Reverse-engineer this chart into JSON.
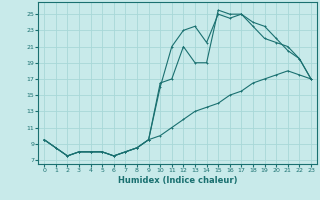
{
  "xlabel": "Humidex (Indice chaleur)",
  "bg_color": "#c8eaea",
  "grid_color": "#a8d8d8",
  "line_color": "#1a7070",
  "xlim": [
    -0.5,
    23.5
  ],
  "ylim": [
    6.5,
    26.5
  ],
  "xticks": [
    0,
    1,
    2,
    3,
    4,
    5,
    6,
    7,
    8,
    9,
    10,
    11,
    12,
    13,
    14,
    15,
    16,
    17,
    18,
    19,
    20,
    21,
    22,
    23
  ],
  "yticks": [
    7,
    9,
    11,
    13,
    15,
    17,
    19,
    21,
    23,
    25
  ],
  "curve1_x": [
    0,
    1,
    2,
    3,
    4,
    5,
    6,
    7,
    8,
    9,
    10,
    11,
    12,
    13,
    14,
    15,
    16,
    17,
    18,
    19,
    20,
    21,
    22,
    23
  ],
  "curve1_y": [
    9.5,
    8.5,
    7.5,
    8.0,
    8.0,
    8.0,
    7.5,
    8.0,
    8.5,
    9.5,
    10.0,
    11.0,
    12.0,
    13.0,
    13.5,
    14.0,
    15.0,
    15.5,
    16.5,
    17.0,
    17.5,
    18.0,
    17.5,
    17.0
  ],
  "curve2_x": [
    0,
    1,
    2,
    3,
    4,
    5,
    6,
    7,
    8,
    9,
    10,
    11,
    12,
    13,
    14,
    15,
    16,
    17,
    18,
    19,
    20,
    21,
    22,
    23
  ],
  "curve2_y": [
    9.5,
    8.5,
    7.5,
    8.0,
    8.0,
    8.0,
    7.5,
    8.0,
    8.5,
    9.5,
    16.5,
    17.0,
    21.0,
    19.0,
    19.0,
    25.5,
    25.0,
    25.0,
    23.5,
    22.0,
    21.5,
    21.0,
    19.5,
    17.0
  ],
  "curve3_x": [
    0,
    1,
    2,
    3,
    4,
    5,
    6,
    7,
    8,
    9,
    10,
    11,
    12,
    13,
    14,
    15,
    16,
    17,
    18,
    19,
    20,
    21,
    22,
    23
  ],
  "curve3_y": [
    9.5,
    8.5,
    7.5,
    8.0,
    8.0,
    8.0,
    7.5,
    8.0,
    8.5,
    9.5,
    16.0,
    21.0,
    23.0,
    23.5,
    21.5,
    25.0,
    24.5,
    25.0,
    24.0,
    23.5,
    22.0,
    20.5,
    19.5,
    17.0
  ]
}
